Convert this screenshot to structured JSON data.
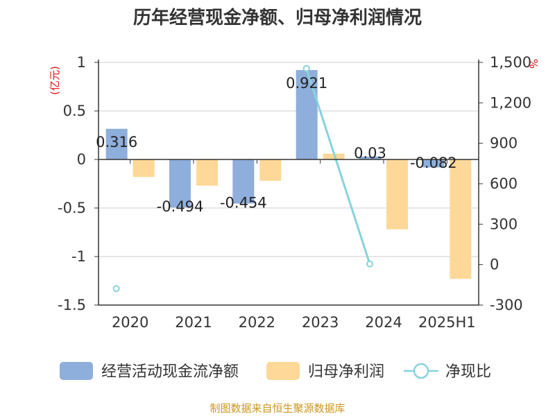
{
  "title": "历年经营现金净额、归母净利润情况",
  "source": "制图数据来自恒生聚源数据库",
  "colors": {
    "cash": "#8eaedb",
    "profit": "#fdd899",
    "ratio": "#88d2dc",
    "grid": "#cccccc",
    "axis": "#333333",
    "unit": "#e01010",
    "source": "#c8961e"
  },
  "chart_data": {
    "type": "bar",
    "categories": [
      "2020",
      "2021",
      "2022",
      "2023",
      "2024",
      "2025H1"
    ],
    "left_unit": "(亿元)",
    "right_unit": "%",
    "ylim_left": [
      -1.5,
      1
    ],
    "left_ticks": [
      "1",
      "0.5",
      "0",
      "-0.5",
      "-1",
      "-1.5"
    ],
    "ylim_right": [
      -300,
      1500
    ],
    "right_ticks": [
      "1,500",
      "1,200",
      "900",
      "600",
      "300",
      "0",
      "-300"
    ],
    "series": [
      {
        "name": "经营活动现金流净额",
        "type": "bar",
        "axis": "left",
        "values": [
          0.316,
          -0.494,
          -0.454,
          0.921,
          0.03,
          -0.082
        ],
        "labels": [
          "0.316",
          "-0.494",
          "-0.454",
          "0.921",
          "0.03",
          "-0.082"
        ]
      },
      {
        "name": "归母净利润",
        "type": "bar",
        "axis": "left",
        "values": [
          -0.18,
          -0.27,
          -0.22,
          0.06,
          -0.72,
          -1.23
        ]
      },
      {
        "name": "净现比",
        "type": "line",
        "axis": "right",
        "values": [
          -178,
          null,
          null,
          1455,
          5,
          null
        ]
      }
    ],
    "legend_position": "bottom",
    "grid": true
  }
}
